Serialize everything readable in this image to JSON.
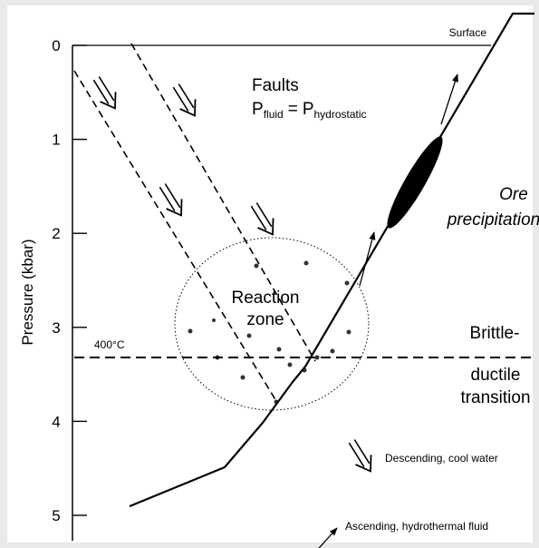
{
  "axis": {
    "label": "Pressure (kbar)",
    "ticks": [
      0,
      1,
      2,
      3,
      4,
      5
    ]
  },
  "surface_label": "Surface",
  "faults": {
    "title": "Faults",
    "lhs": "P",
    "lhs_sub": "fluid",
    "operator": "=",
    "rhs": "P",
    "rhs_sub": "hydrostatic"
  },
  "reaction_zone": [
    "Reaction",
    "zone"
  ],
  "ore": [
    "Ore",
    "precipitation"
  ],
  "isotherm": "400°C",
  "transition": [
    "Brittle-",
    "ductile",
    "transition"
  ],
  "legend": {
    "descending": "Descending, cool water",
    "ascending": "Ascending, hydrothermal fluid"
  }
}
